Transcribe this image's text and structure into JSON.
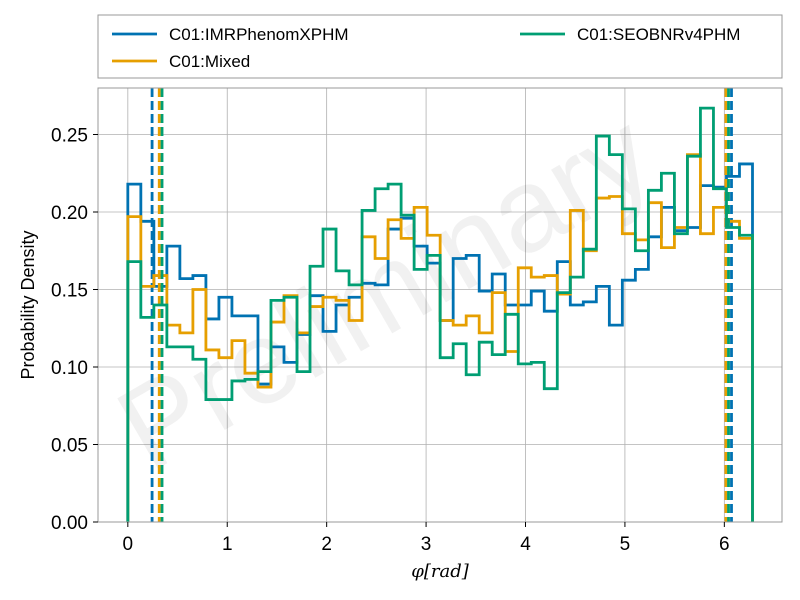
{
  "chart_data": {
    "type": "histogram",
    "title": "",
    "xlabel": "φ[rad]",
    "ylabel": "Probability Density",
    "xlim": [
      -0.3,
      6.58
    ],
    "ylim": [
      0,
      0.28
    ],
    "xticks": [
      0,
      1,
      2,
      3,
      4,
      5,
      6
    ],
    "yticks": [
      0.0,
      0.05,
      0.1,
      0.15,
      0.2,
      0.25
    ],
    "ytick_labels": [
      "0.00",
      "0.05",
      "0.10",
      "0.15",
      "0.20",
      "0.25"
    ],
    "grid": true,
    "legend": {
      "placement": "top",
      "columns": 2
    },
    "watermark": "Preliminary",
    "bin_range": [
      0,
      6.2832
    ],
    "series": [
      {
        "name": "C01:IMRPhenomXPHM",
        "color": "#0072b2",
        "values": [
          0.218,
          0.194,
          0.152,
          0.178,
          0.157,
          0.159,
          0.131,
          0.145,
          0.133,
          0.133,
          0.089,
          0.113,
          0.103,
          0.121,
          0.146,
          0.123,
          0.14,
          0.145,
          0.154,
          0.153,
          0.189,
          0.196,
          0.178,
          0.167,
          0.13,
          0.17,
          0.172,
          0.149,
          0.16,
          0.14,
          0.14,
          0.149,
          0.136,
          0.168,
          0.14,
          0.142,
          0.152,
          0.127,
          0.156,
          0.163,
          0.184,
          0.203,
          0.188,
          0.19,
          0.217,
          0.216,
          0.223,
          0.231
        ],
        "ci": [
          0.244,
          6.072
        ]
      },
      {
        "name": "C01:Mixed",
        "color": "#e69f00",
        "values": [
          0.197,
          0.152,
          0.159,
          0.127,
          0.122,
          0.15,
          0.111,
          0.106,
          0.117,
          0.096,
          0.087,
          0.129,
          0.146,
          0.122,
          0.139,
          0.145,
          0.143,
          0.13,
          0.184,
          0.17,
          0.195,
          0.183,
          0.203,
          0.185,
          0.13,
          0.127,
          0.133,
          0.122,
          0.148,
          0.11,
          0.164,
          0.158,
          0.159,
          0.147,
          0.201,
          0.175,
          0.209,
          0.21,
          0.186,
          0.182,
          0.206,
          0.177,
          0.19,
          0.237,
          0.186,
          0.203,
          0.194,
          0.183
        ],
        "ci": [
          0.316,
          6.016
        ]
      },
      {
        "name": "C01:SEOBNRv4PHM",
        "color": "#009e73",
        "values": [
          0.168,
          0.132,
          0.14,
          0.113,
          0.113,
          0.105,
          0.079,
          0.079,
          0.091,
          0.092,
          0.097,
          0.143,
          0.145,
          0.097,
          0.165,
          0.189,
          0.162,
          0.153,
          0.201,
          0.215,
          0.218,
          0.198,
          0.163,
          0.172,
          0.106,
          0.115,
          0.095,
          0.116,
          0.108,
          0.134,
          0.102,
          0.103,
          0.086,
          0.148,
          0.158,
          0.176,
          0.249,
          0.237,
          0.202,
          0.175,
          0.214,
          0.225,
          0.186,
          0.236,
          0.267,
          0.215,
          0.19,
          0.185
        ],
        "ci": [
          0.344,
          6.042
        ]
      }
    ]
  }
}
